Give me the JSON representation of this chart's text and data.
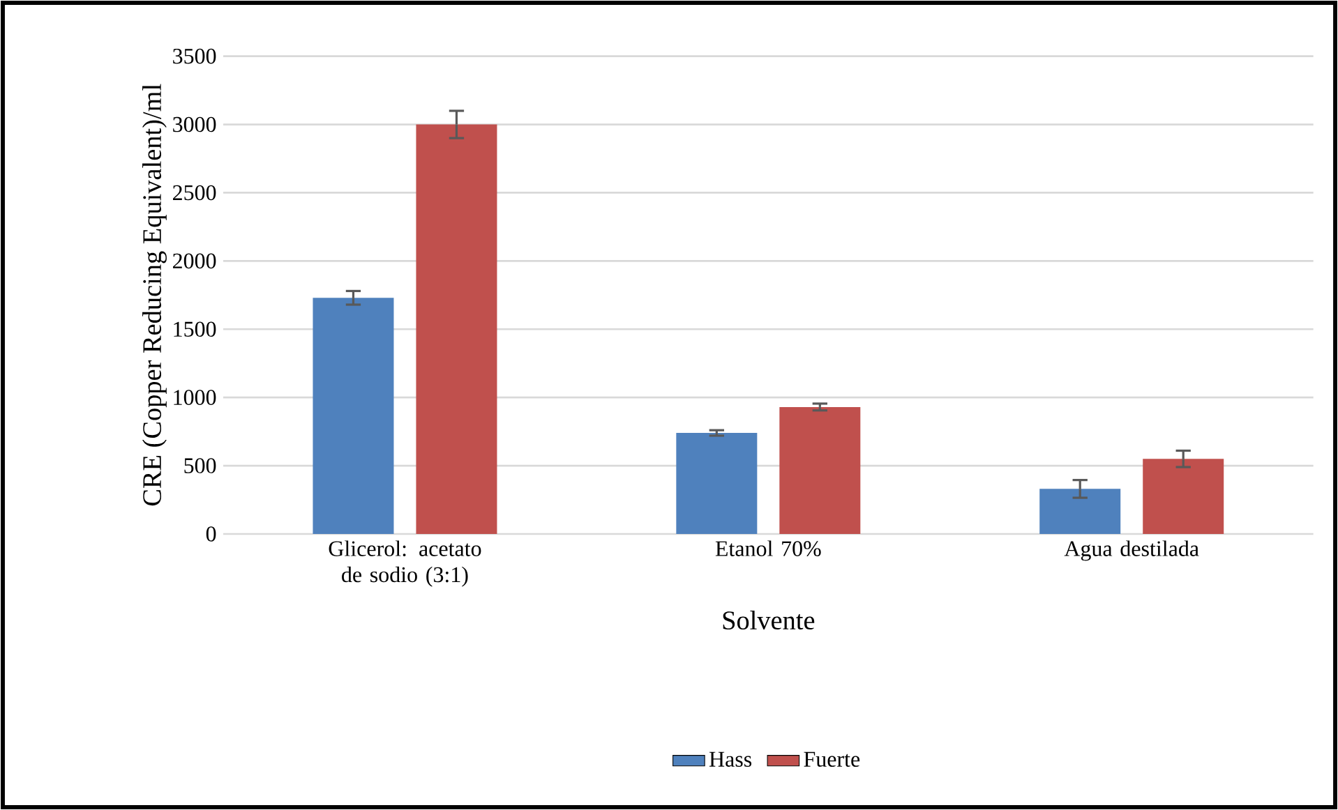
{
  "chart_data": {
    "type": "bar",
    "xlabel": "Solvente",
    "ylabel": "CRE (Copper Reducing Equivalent)/ml",
    "categories": [
      "Glicerol: acetato de sodio (3:1)",
      "Etanol 70%",
      "Agua destilada"
    ],
    "series": [
      {
        "name": "Hass",
        "color": "#4f81bd",
        "values": [
          1730,
          740,
          330
        ],
        "errors": [
          50,
          20,
          65
        ]
      },
      {
        "name": "Fuerte",
        "color": "#c0504d",
        "values": [
          3000,
          930,
          550
        ],
        "errors": [
          100,
          25,
          60
        ]
      }
    ],
    "ylim": [
      0,
      3500
    ],
    "yticks": [
      0,
      500,
      1000,
      1500,
      2000,
      2500,
      3000,
      3500
    ],
    "grid": "y",
    "legend": "bottom"
  }
}
